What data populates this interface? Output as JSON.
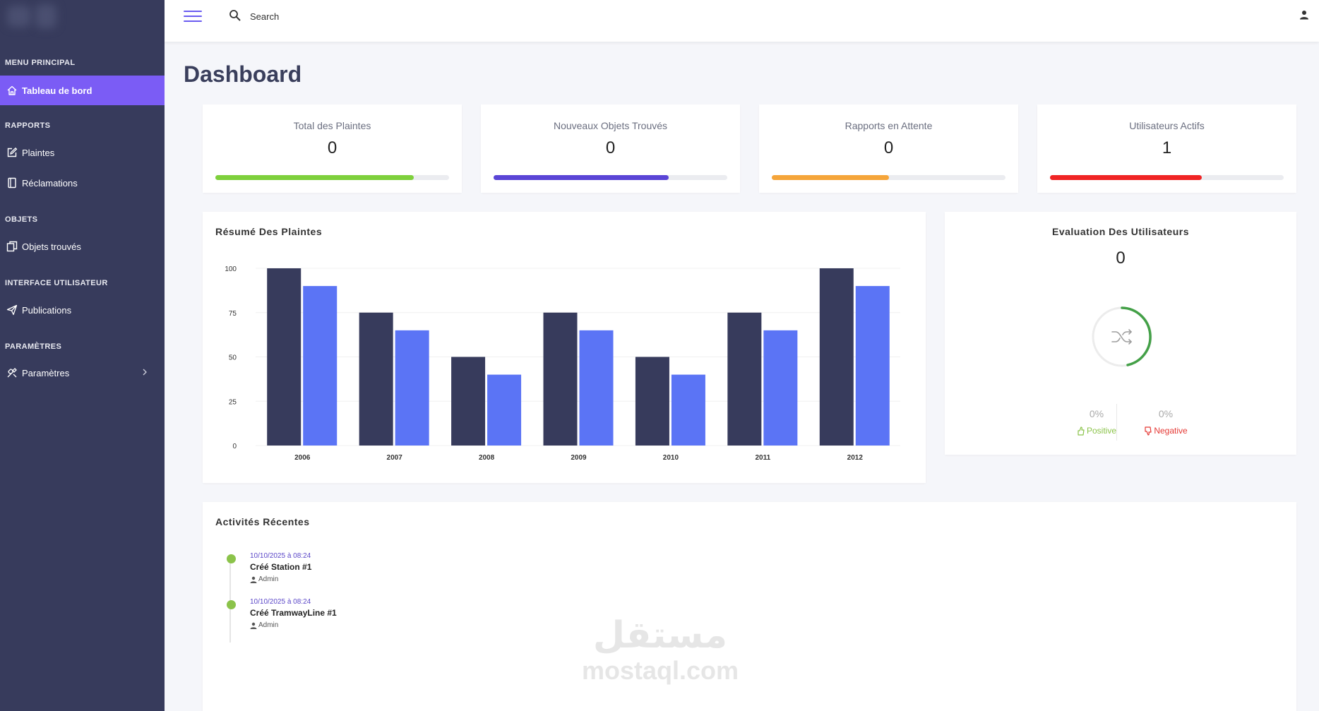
{
  "sidebar": {
    "sections": [
      {
        "title": "MENU PRINCIPAL"
      },
      {
        "title": "RAPPORTS"
      },
      {
        "title": "OBJETS"
      },
      {
        "title": "INTERFACE UTILISATEUR"
      },
      {
        "title": "PARAMÈTRES"
      }
    ],
    "items": [
      {
        "label": "Tableau de bord",
        "icon": "home-icon",
        "active": true
      },
      {
        "label": "Plaintes",
        "icon": "edit-icon"
      },
      {
        "label": "Réclamations",
        "icon": "book-icon"
      },
      {
        "label": "Objets trouvés",
        "icon": "copy-icon"
      },
      {
        "label": "Publications",
        "icon": "send-icon"
      },
      {
        "label": "Paramètres",
        "icon": "tools-icon"
      }
    ],
    "colors": {
      "bg": "#373b5c",
      "active": "#7b5cf5"
    }
  },
  "topbar": {
    "search_placeholder": "Search"
  },
  "page": {
    "title": "Dashboard"
  },
  "stats": [
    {
      "label": "Total des Plaintes",
      "value": "0",
      "progress": 0.85,
      "color": "#7ed03c"
    },
    {
      "label": "Nouveaux Objets Trouvés",
      "value": "0",
      "progress": 0.75,
      "color": "#5a45d6"
    },
    {
      "label": "Rapports en Attente",
      "value": "0",
      "progress": 0.5,
      "color": "#f5a53a"
    },
    {
      "label": "Utilisateurs Actifs",
      "value": "1",
      "progress": 0.65,
      "color": "#f02424"
    }
  ],
  "summary": {
    "title": "Résumé Des Plaintes"
  },
  "chart_data": {
    "type": "bar",
    "categories": [
      "2006",
      "2007",
      "2008",
      "2009",
      "2010",
      "2011",
      "2012"
    ],
    "series": [
      {
        "values": [
          100,
          75,
          50,
          75,
          50,
          75,
          100
        ],
        "color": "#373b5c"
      },
      {
        "values": [
          90,
          65,
          40,
          65,
          40,
          65,
          90
        ],
        "color": "#5b74f5"
      }
    ],
    "yticks": [
      "0",
      "25",
      "50",
      "75",
      "100"
    ],
    "ylim": [
      0,
      100
    ],
    "grid": true
  },
  "evaluation": {
    "title": "Evaluation Des Utilisateurs",
    "value": "0",
    "positive_pct": "0%",
    "positive_label": "Positive",
    "negative_pct": "0%",
    "negative_label": "Negative",
    "positive_color": "#8bc34a",
    "negative_color": "#e53935"
  },
  "activities": {
    "title": "Activités Récentes",
    "items": [
      {
        "time": "10/10/2025 à 08:24",
        "title": "Créé Station #1",
        "user": "Admin"
      },
      {
        "time": "10/10/2025 à 08:24",
        "title": "Créé TramwayLine #1",
        "user": "Admin"
      }
    ]
  },
  "watermark": {
    "arabic": "مستقل",
    "latin": "mostaql.com"
  }
}
